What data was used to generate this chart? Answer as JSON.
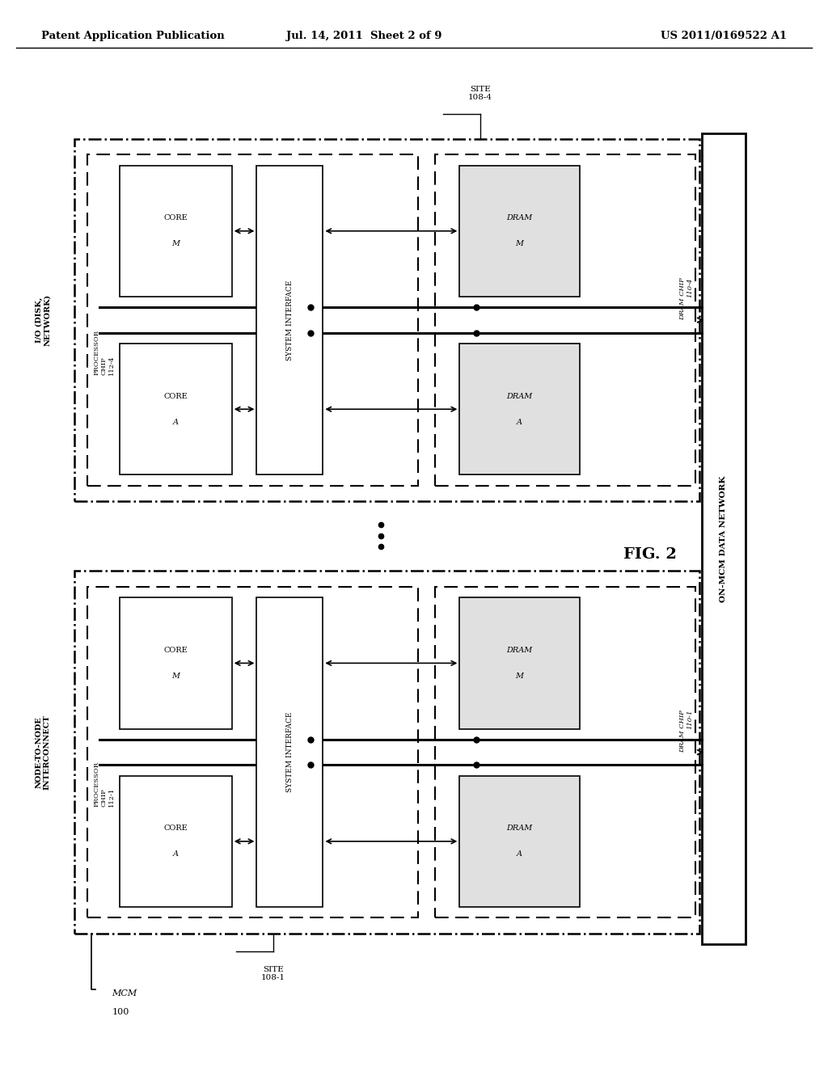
{
  "bg_color": "#ffffff",
  "header_left": "Patent Application Publication",
  "header_mid": "Jul. 14, 2011  Sheet 2 of 9",
  "header_right": "US 2011/0169522 A1",
  "fig_label": "FIG. 2",
  "mcm_label": "MCM\n100",
  "on_mcm_label": "ON-MCM DATA NETWORK",
  "site1_label": "SITE\n108-1",
  "site4_label": "SITE\n108-4",
  "node_to_node_label": "NODE-TO-NODE\nINTERCONNECT",
  "io_label": "I/O (DISK,\nNETWORK)"
}
